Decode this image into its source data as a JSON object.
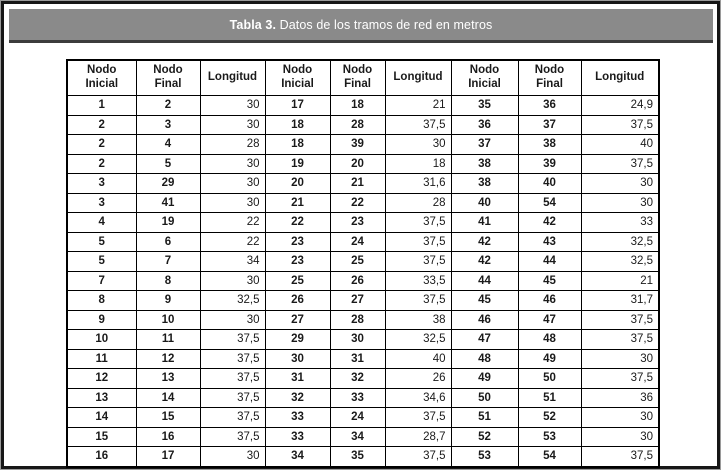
{
  "title": {
    "label_bold": "Tabla 3.",
    "label_rest": " Datos de los tramos de red en metros"
  },
  "colors": {
    "title_bar_bg": "#8a8a8a",
    "title_bar_edge": "#3c3c3c",
    "frame_border": "#161616",
    "table_border": "#000000",
    "title_text": "#ffffff"
  },
  "table": {
    "headers": [
      "Nodo\nInicial",
      "Nodo\nFinal",
      "Longitud",
      "Nodo\nInicial",
      "Nodo\nFinal",
      "Longitud",
      "Nodo\nInicial",
      "Nodo\nFinal",
      "Longitud"
    ],
    "rows": [
      [
        "1",
        "2",
        "30",
        "17",
        "18",
        "21",
        "35",
        "36",
        "24,9"
      ],
      [
        "2",
        "3",
        "30",
        "18",
        "28",
        "37,5",
        "36",
        "37",
        "37,5"
      ],
      [
        "2",
        "4",
        "28",
        "18",
        "39",
        "30",
        "37",
        "38",
        "40"
      ],
      [
        "2",
        "5",
        "30",
        "19",
        "20",
        "18",
        "38",
        "39",
        "37,5"
      ],
      [
        "3",
        "29",
        "30",
        "20",
        "21",
        "31,6",
        "38",
        "40",
        "30"
      ],
      [
        "3",
        "41",
        "30",
        "21",
        "22",
        "28",
        "40",
        "54",
        "30"
      ],
      [
        "4",
        "19",
        "22",
        "22",
        "23",
        "37,5",
        "41",
        "42",
        "33"
      ],
      [
        "5",
        "6",
        "22",
        "23",
        "24",
        "37,5",
        "42",
        "43",
        "32,5"
      ],
      [
        "5",
        "7",
        "34",
        "23",
        "25",
        "37,5",
        "42",
        "44",
        "32,5"
      ],
      [
        "7",
        "8",
        "30",
        "25",
        "26",
        "33,5",
        "44",
        "45",
        "21"
      ],
      [
        "8",
        "9",
        "32,5",
        "26",
        "27",
        "37,5",
        "45",
        "46",
        "31,7"
      ],
      [
        "9",
        "10",
        "30",
        "27",
        "28",
        "38",
        "46",
        "47",
        "37,5"
      ],
      [
        "10",
        "11",
        "37,5",
        "29",
        "30",
        "32,5",
        "47",
        "48",
        "37,5"
      ],
      [
        "11",
        "12",
        "37,5",
        "30",
        "31",
        "40",
        "48",
        "49",
        "30"
      ],
      [
        "12",
        "13",
        "37,5",
        "31",
        "32",
        "26",
        "49",
        "50",
        "37,5"
      ],
      [
        "13",
        "14",
        "37,5",
        "32",
        "33",
        "34,6",
        "50",
        "51",
        "36"
      ],
      [
        "14",
        "15",
        "37,5",
        "33",
        "24",
        "37,5",
        "51",
        "52",
        "30"
      ],
      [
        "15",
        "16",
        "37,5",
        "33",
        "34",
        "28,7",
        "52",
        "53",
        "30"
      ],
      [
        "16",
        "17",
        "30",
        "34",
        "35",
        "37,5",
        "53",
        "54",
        "37,5"
      ]
    ]
  }
}
